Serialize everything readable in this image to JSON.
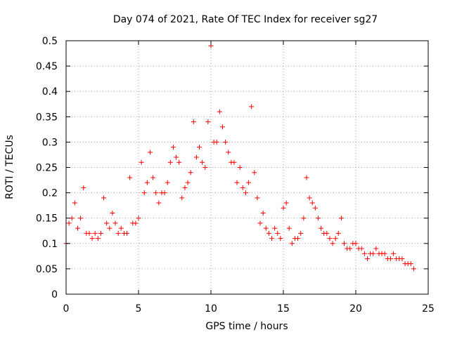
{
  "chart_data": {
    "type": "scatter",
    "title": "Day 074 of 2021, Rate Of TEC Index for receiver sg27",
    "xlabel": "GPS time / hours",
    "ylabel": "ROTI / TECUs",
    "xlim": [
      0,
      25
    ],
    "ylim": [
      0,
      0.5
    ],
    "xticks": [
      "0",
      "5",
      "10",
      "15",
      "20",
      "25"
    ],
    "yticks": [
      "0",
      "0.05",
      "0.1",
      "0.15",
      "0.2",
      "0.25",
      "0.3",
      "0.35",
      "0.4",
      "0.45",
      "0.5"
    ],
    "grid": true,
    "marker": "+",
    "color": "#ff0000",
    "series": [
      {
        "name": "ROTI",
        "x": [
          0.0,
          0.2,
          0.4,
          0.6,
          0.8,
          1.0,
          1.2,
          1.4,
          1.6,
          1.8,
          2.0,
          2.2,
          2.4,
          2.6,
          2.8,
          3.0,
          3.2,
          3.4,
          3.6,
          3.8,
          4.0,
          4.2,
          4.4,
          4.6,
          4.8,
          5.0,
          5.2,
          5.4,
          5.6,
          5.8,
          6.0,
          6.2,
          6.4,
          6.6,
          6.8,
          7.0,
          7.2,
          7.4,
          7.6,
          7.8,
          8.0,
          8.2,
          8.4,
          8.6,
          8.8,
          9.0,
          9.2,
          9.4,
          9.6,
          9.8,
          10.0,
          10.2,
          10.4,
          10.6,
          10.8,
          11.0,
          11.2,
          11.4,
          11.6,
          11.8,
          12.0,
          12.2,
          12.4,
          12.6,
          12.8,
          13.0,
          13.2,
          13.4,
          13.6,
          13.8,
          14.0,
          14.2,
          14.4,
          14.6,
          14.8,
          15.0,
          15.2,
          15.4,
          15.6,
          15.8,
          16.0,
          16.2,
          16.4,
          16.6,
          16.8,
          17.0,
          17.2,
          17.4,
          17.6,
          17.8,
          18.0,
          18.2,
          18.4,
          18.6,
          18.8,
          19.0,
          19.2,
          19.4,
          19.6,
          19.8,
          20.0,
          20.2,
          20.4,
          20.6,
          20.8,
          21.0,
          21.2,
          21.4,
          21.6,
          21.8,
          22.0,
          22.2,
          22.4,
          22.6,
          22.8,
          23.0,
          23.2,
          23.4,
          23.6,
          23.8,
          24.0
        ],
        "y": [
          0.1,
          0.14,
          0.15,
          0.18,
          0.13,
          0.15,
          0.21,
          0.12,
          0.12,
          0.11,
          0.12,
          0.11,
          0.12,
          0.19,
          0.14,
          0.13,
          0.16,
          0.14,
          0.12,
          0.13,
          0.12,
          0.12,
          0.23,
          0.14,
          0.14,
          0.15,
          0.26,
          0.2,
          0.22,
          0.28,
          0.23,
          0.2,
          0.18,
          0.2,
          0.2,
          0.22,
          0.26,
          0.29,
          0.27,
          0.26,
          0.19,
          0.21,
          0.22,
          0.24,
          0.34,
          0.27,
          0.29,
          0.26,
          0.25,
          0.34,
          0.49,
          0.3,
          0.3,
          0.36,
          0.33,
          0.3,
          0.28,
          0.26,
          0.26,
          0.22,
          0.25,
          0.21,
          0.2,
          0.22,
          0.37,
          0.24,
          0.19,
          0.14,
          0.16,
          0.13,
          0.12,
          0.11,
          0.13,
          0.12,
          0.11,
          0.17,
          0.18,
          0.13,
          0.1,
          0.11,
          0.11,
          0.12,
          0.15,
          0.23,
          0.19,
          0.18,
          0.17,
          0.15,
          0.13,
          0.12,
          0.12,
          0.11,
          0.1,
          0.11,
          0.12,
          0.15,
          0.1,
          0.09,
          0.09,
          0.1,
          0.1,
          0.09,
          0.09,
          0.08,
          0.07,
          0.08,
          0.08,
          0.09,
          0.08,
          0.08,
          0.08,
          0.07,
          0.07,
          0.08,
          0.07,
          0.07,
          0.07,
          0.06,
          0.06,
          0.06,
          0.05
        ]
      }
    ]
  }
}
